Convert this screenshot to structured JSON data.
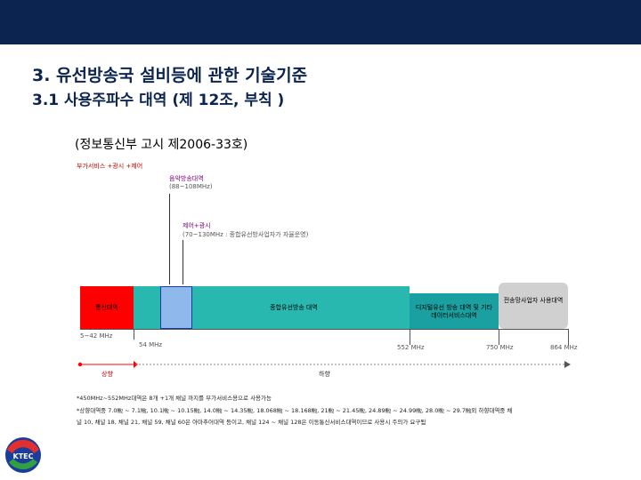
{
  "header": {
    "title": "3. 유선방송국 설비등에 관한 기술기준",
    "subtitle": "3.1 사용주파수 대역 (제 12조, 부칙 )",
    "notice": "(정보통신부 고시 제2006-33호)"
  },
  "diagram": {
    "label_top_left": "부가서비스 +광시 +제어",
    "fm_label": "음악방송대역",
    "fm_range": "(88~108MHz)",
    "ctrl_label": "제어+광시",
    "ctrl_range": "(70~130MHz : 종합유선방사업자가 자율운영)",
    "seg_upstream": "통신대역",
    "seg_cable": "종합유선방송 대역",
    "seg_digital": "디지털유선 방송 대역 및 기타 데이터서비스대역",
    "seg_transmit": "전송망사업자 사용대역",
    "freq_5": "5~42 MHz",
    "freq_54": "54 MHz",
    "freq_552": "552 MHz",
    "freq_750": "750 MHz",
    "freq_864": "864 MHz",
    "dir_up": "상향",
    "dir_down": "하향"
  },
  "notes": {
    "line1": "*450MHz~552MHz대역은 8개 +1개 채널 까지를 부가서비스용으로 사용가능",
    "line2": "*상향대역중 7.0㎒ ~ 7.1㎒, 10.1㎒ ~ 10.15㎒, 14.0㎒ ~ 14.35㎒, 18.068㎒ ~ 18.168㎒, 21㎒ ~ 21.45㎒, 24.89㎒ ~ 24.99㎒, 28.0㎒ ~ 29.7㎒외 하향대역중 채",
    "line3": "널 10, 채널 18, 채널 21, 채널 59, 채널 60은 아마추어대역 등이고, 채널 124 ~ 채널 128은 이동통신서비스대역이므로 사용시 주의가 요구됨"
  },
  "logo": {
    "text": "KTEC"
  },
  "colors": {
    "topbar": "#0b2550",
    "upstream": "#ff0000",
    "cable": "#28b8b0",
    "digital": "#1aa0a0",
    "transmit": "#d0d0d0"
  }
}
